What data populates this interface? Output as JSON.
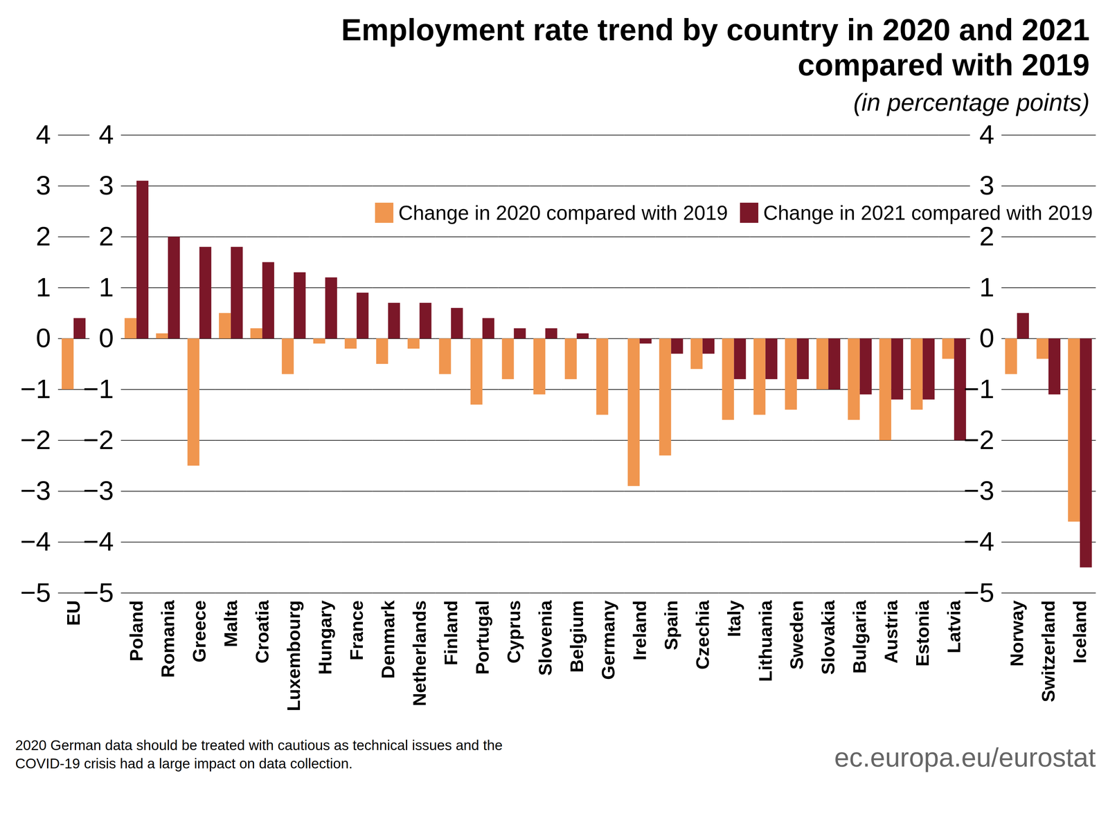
{
  "chart_data": {
    "type": "bar",
    "title": "Employment rate trend by country in 2020 and 2021 compared with 2019",
    "subtitle": "(in percentage points)",
    "note": "2020 German data should be treated with cautious as technical issues and the COVID-19 crisis had a large impact on data collection.",
    "source": "ec.europa.eu/eurostat",
    "categories": [
      "EU",
      null,
      "Poland",
      "Romania",
      "Greece",
      "Malta",
      "Croatia",
      "Luxembourg",
      "Hungary",
      "France",
      "Denmark",
      "Netherlands",
      "Finland",
      "Portugal",
      "Cyprus",
      "Slovenia",
      "Belgium",
      "Germany",
      "Ireland",
      "Spain",
      "Czechia",
      "Italy",
      "Lithuania",
      "Sweden",
      "Slovakia",
      "Bulgaria",
      "Austria",
      "Estonia",
      "Latvia",
      null,
      "Norway",
      "Switzerland",
      "Iceland"
    ],
    "series": [
      {
        "name": "Change in 2020 compared with 2019",
        "color": "#f0964f",
        "values": [
          -1.0,
          null,
          0.4,
          0.1,
          -2.5,
          0.5,
          0.2,
          -0.7,
          -0.1,
          -0.2,
          -0.5,
          -0.2,
          -0.7,
          -1.3,
          -0.8,
          -1.1,
          -0.8,
          -1.5,
          -2.9,
          -2.3,
          -0.6,
          -1.6,
          -1.5,
          -1.4,
          -1.0,
          -1.6,
          -2.0,
          -1.4,
          -0.4,
          null,
          -0.7,
          -0.4,
          -3.6
        ]
      },
      {
        "name": "Change in 2021 compared with 2019",
        "color": "#7b1728",
        "values": [
          0.4,
          null,
          3.1,
          2.0,
          1.8,
          1.8,
          1.5,
          1.3,
          1.2,
          0.9,
          0.7,
          0.7,
          0.6,
          0.4,
          0.2,
          0.2,
          0.1,
          0.0,
          -0.1,
          -0.3,
          -0.3,
          -0.8,
          -0.8,
          -0.8,
          -1.0,
          -1.1,
          -1.2,
          -1.2,
          -2.0,
          null,
          0.5,
          -1.1,
          -4.5
        ]
      }
    ],
    "ylim": [
      -5,
      4
    ],
    "yticks": [
      -5,
      -4,
      -3,
      -2,
      -1,
      0,
      1,
      2,
      3,
      4
    ],
    "grid": true,
    "legend": "top-right"
  }
}
